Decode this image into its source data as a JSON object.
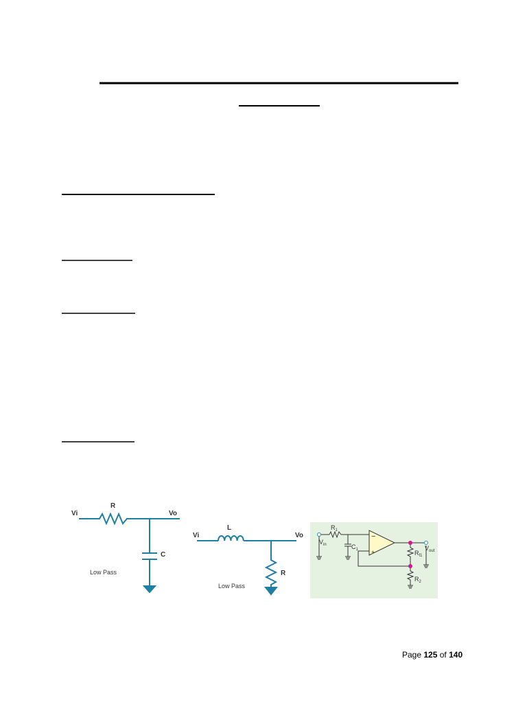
{
  "circuit_rc": {
    "input": "Vi",
    "output": "Vo",
    "resistor": "R",
    "capacitor": "C",
    "caption": "Low Pass"
  },
  "circuit_lr": {
    "input": "Vi",
    "output": "Vo",
    "inductor": "L",
    "resistor": "R",
    "caption": "Low Pass"
  },
  "circuit_opamp": {
    "r1": {
      "base": "R",
      "sub": "1"
    },
    "c1": {
      "base": "C",
      "sub": "1"
    },
    "vin": {
      "base": "V",
      "sub": "in"
    },
    "rf1": {
      "base": "R",
      "sub": "f1"
    },
    "r2": {
      "base": "R",
      "sub": "2"
    },
    "vout": {
      "base": "V",
      "sub": "out"
    },
    "minus": "−",
    "plus": "+"
  },
  "footer": {
    "page_word": "Page",
    "page": 125,
    "of_word": "of",
    "total": 140
  }
}
